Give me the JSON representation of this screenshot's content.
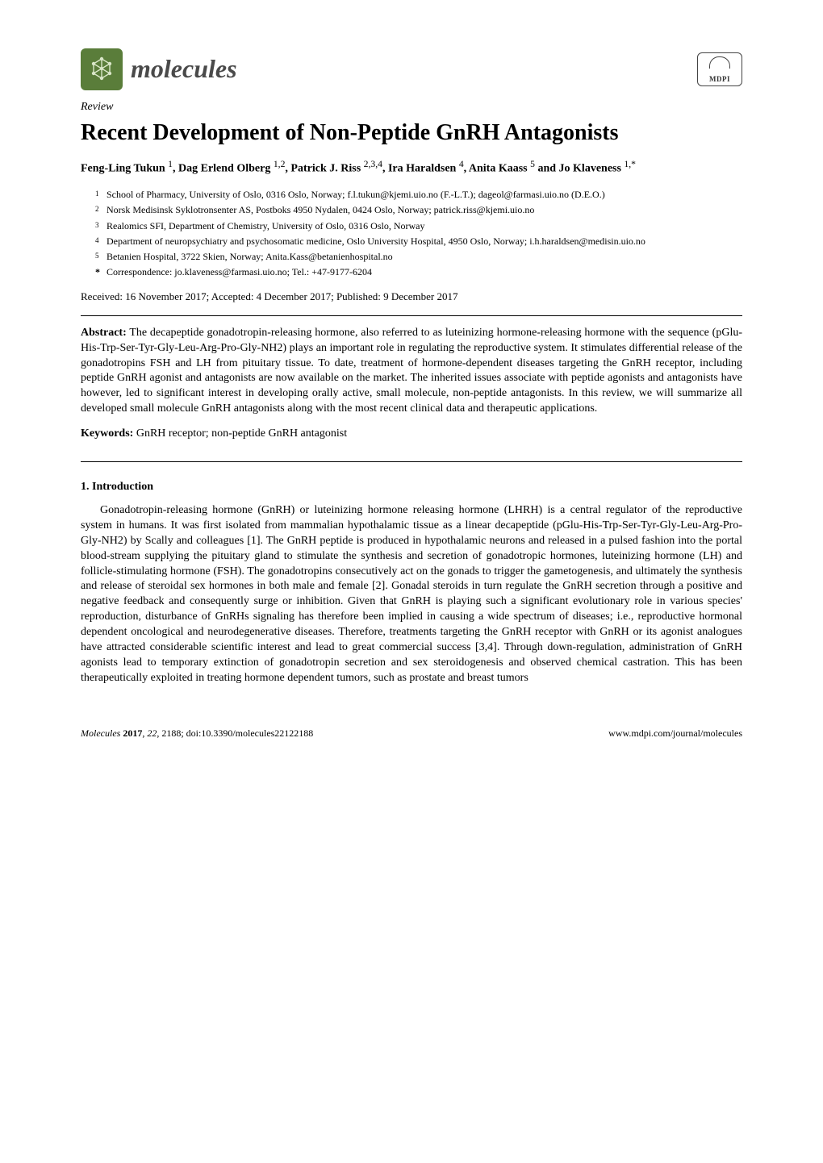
{
  "header": {
    "journal_name": "molecules",
    "publisher_abbrev": "MDPI"
  },
  "article": {
    "type": "Review",
    "title": "Recent Development of Non-Peptide GnRH Antagonists",
    "authors_html": "Feng-Ling Tukun <sup>1</sup>, Dag Erlend Olberg <sup>1,2</sup>, Patrick J. Riss <sup>2,3,4</sup>, Ira Haraldsen <sup>4</sup>, Anita Kaass <sup>5</sup> and Jo Klaveness <sup>1,*</sup>",
    "affiliations": [
      {
        "num": "1",
        "text": "School of Pharmacy, University of Oslo, 0316 Oslo, Norway; f.l.tukun@kjemi.uio.no (F.-L.T.); dageol@farmasi.uio.no (D.E.O.)"
      },
      {
        "num": "2",
        "text": "Norsk Medisinsk Syklotronsenter AS, Postboks 4950 Nydalen, 0424 Oslo, Norway; patrick.riss@kjemi.uio.no"
      },
      {
        "num": "3",
        "text": "Realomics SFI, Department of Chemistry, University of Oslo, 0316 Oslo, Norway"
      },
      {
        "num": "4",
        "text": "Department of neuropsychiatry and psychosomatic medicine, Oslo University Hospital, 4950 Oslo, Norway; i.h.haraldsen@medisin.uio.no"
      },
      {
        "num": "5",
        "text": "Betanien Hospital, 3722 Skien, Norway; Anita.Kass@betanienhospital.no"
      }
    ],
    "correspondence": {
      "mark": "*",
      "text": "Correspondence: jo.klaveness@farmasi.uio.no; Tel.: +47-9177-6204"
    },
    "dates": "Received: 16 November 2017; Accepted: 4 December 2017; Published: 9 December 2017",
    "abstract_label": "Abstract:",
    "abstract": "The decapeptide gonadotropin-releasing hormone, also referred to as luteinizing hormone-releasing hormone with the sequence (pGlu-His-Trp-Ser-Tyr-Gly-Leu-Arg-Pro-Gly-NH2) plays an important role in regulating the reproductive system. It stimulates differential release of the gonadotropins FSH and LH from pituitary tissue. To date, treatment of hormone-dependent diseases targeting the GnRH receptor, including peptide GnRH agonist and antagonists are now available on the market. The inherited issues associate with peptide agonists and antagonists have however, led to significant interest in developing orally active, small molecule, non-peptide antagonists. In this review, we will summarize all developed small molecule GnRH antagonists along with the most recent clinical data and therapeutic applications.",
    "keywords_label": "Keywords:",
    "keywords": "GnRH receptor; non-peptide GnRH antagonist",
    "section1_heading": "1. Introduction",
    "section1_body": "Gonadotropin-releasing hormone (GnRH) or luteinizing hormone releasing hormone (LHRH) is a central regulator of the reproductive system in humans. It was first isolated from mammalian hypothalamic tissue as a linear decapeptide (pGlu-His-Trp-Ser-Tyr-Gly-Leu-Arg-Pro-Gly-NH2) by Scally and colleagues [1]. The GnRH peptide is produced in hypothalamic neurons and released in a pulsed fashion into the portal blood-stream supplying the pituitary gland to stimulate the synthesis and secretion of gonadotropic hormones, luteinizing hormone (LH) and follicle-stimulating hormone (FSH). The gonadotropins consecutively act on the gonads to trigger the gametogenesis, and ultimately the synthesis and release of steroidal sex hormones in both male and female [2]. Gonadal steroids in turn regulate the GnRH secretion through a positive and negative feedback and consequently surge or inhibition. Given that GnRH is playing such a significant evolutionary role in various species' reproduction, disturbance of GnRHs signaling has therefore been implied in causing a wide spectrum of diseases; i.e., reproductive hormonal dependent oncological and neurodegenerative diseases. Therefore, treatments targeting the GnRH receptor with GnRH or its agonist analogues have attracted considerable scientific interest and lead to great commercial success [3,4]. Through down-regulation, administration of GnRH agonists lead to temporary extinction of gonadotropin secretion and sex steroidogenesis and observed chemical castration. This has been therapeutically exploited in treating hormone dependent tumors, such as prostate and breast tumors"
  },
  "footer": {
    "journal": "Molecules",
    "year": "2017",
    "volume": "22",
    "article_num": "2188",
    "doi": "doi:10.3390/molecules22122188",
    "url": "www.mdpi.com/journal/molecules"
  },
  "colors": {
    "logo_bg": "#5a7d3a",
    "logo_fg": "#d9e6c8",
    "text": "#000000",
    "background": "#ffffff"
  },
  "typography": {
    "body_font": "Palatino Linotype",
    "title_fontsize_pt": 21,
    "body_fontsize_pt": 10.5,
    "affiliation_fontsize_pt": 9
  }
}
